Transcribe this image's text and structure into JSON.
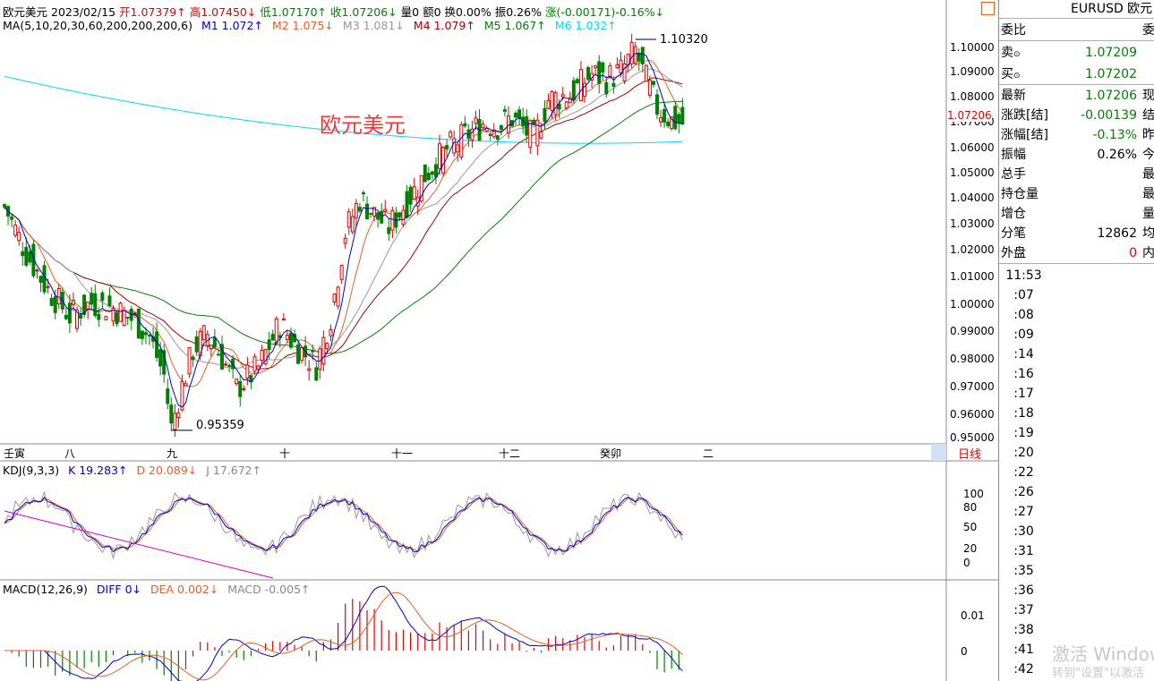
{
  "header": {
    "symbol_name": "欧元美元",
    "date": "2023/02/15",
    "open": "开1.07379↑",
    "high": "高1.07450↓",
    "low": "低1.07170↑",
    "close": "收1.07206↓",
    "volume": "量0",
    "amount": "额0",
    "turnover": "换0.00%",
    "amplitude": "振0.26%",
    "change": "涨(-0.00171)-0.16%↓"
  },
  "ma_legend": {
    "params": "MA(5,10,20,30,60,200,200,200,6)",
    "m1": "M1 1.072↑",
    "m2": "M2 1.075↓",
    "m3": "M3 1.081↓",
    "m4": "M4 1.079↑",
    "m5": "M5 1.067↑",
    "m6": "M6 1.032↑",
    "colors": {
      "m1": "#0000c8",
      "m2": "#e0602a",
      "m3": "#999999",
      "m4": "#a00000",
      "m5": "#008000",
      "m6": "#00e0ff"
    }
  },
  "chart_title": "欧元美元",
  "price_axis": [
    "1.10000",
    "1.09000",
    "1.08000",
    "1.07000",
    "1.06000",
    "1.05000",
    "1.04000",
    "1.03000",
    "1.02000",
    "1.01000",
    "1.00000",
    "0.99000",
    "0.98000",
    "0.97000",
    "0.96000",
    "0.95000"
  ],
  "current_price_tag": "1.07206",
  "annotations": {
    "high": "1.10320",
    "low": "0.95359"
  },
  "month_axis": [
    "壬寅",
    "八",
    "九",
    "十",
    "十一",
    "十二",
    "癸卯",
    "二"
  ],
  "period_button": "日线",
  "kdj": {
    "params": "KDJ(9,3,3)",
    "k": "K 19.283↑",
    "d": "D 20.089↓",
    "j": "J 17.672↑",
    "axis": [
      "100",
      "80",
      "50",
      "20",
      "0"
    ]
  },
  "macd": {
    "params": "MACD(12,26,9)",
    "diff": "DIFF 0↓",
    "dea": "DEA 0.002↓",
    "macd": "MACD -0.005↑",
    "axis": [
      "0.01",
      "0"
    ]
  },
  "quote_panel": {
    "title": "EURUSD 欧元",
    "weibi": "委比",
    "weibi_cut": "委",
    "sell_label": "卖",
    "sell_value": "1.07209",
    "buy_label": "买",
    "buy_value": "1.07202",
    "rows": [
      {
        "label": "最新",
        "value": "1.07206",
        "cut": "现",
        "color": "green"
      },
      {
        "label": "涨跌[结]",
        "value": "-0.00139",
        "cut": "结",
        "color": "green"
      },
      {
        "label": "涨幅[结]",
        "value": "-0.13%",
        "cut": "昨",
        "color": "green"
      },
      {
        "label": "振幅",
        "value": "0.26%",
        "cut": "今",
        "color": "black"
      },
      {
        "label": "总手",
        "value": "",
        "cut": "最",
        "color": "black"
      },
      {
        "label": "持仓量",
        "value": "",
        "cut": "最",
        "color": "black"
      },
      {
        "label": "增仓",
        "value": "",
        "cut": "量",
        "color": "black"
      },
      {
        "label": "分笔",
        "value": "12862",
        "cut": "均",
        "color": "black"
      },
      {
        "label": "外盘",
        "value": "0",
        "cut": "内",
        "color": "red"
      }
    ]
  },
  "ticks": [
    "11:53",
    ":07",
    ":08",
    ":09",
    ":14",
    ":16",
    ":17",
    ":18",
    ":19",
    ":20",
    ":22",
    ":26",
    ":27",
    ":30",
    ":31",
    ":35",
    ":36",
    ":37",
    ":38",
    ":41",
    ":42"
  ],
  "watermark": {
    "line1": "激活 Windows",
    "line2": "转到\"设置\"以激活"
  }
}
